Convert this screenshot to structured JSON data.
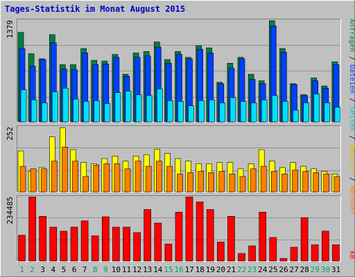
{
  "title": "Tages-Statistik im Monat August 2015",
  "colors": {
    "background": "#c0c0c0",
    "title": "#0000c0",
    "hits": "#008040",
    "files": "#0040ff",
    "pages": "#00e0ff",
    "visits": "#ffff00",
    "sites": "#ff8000",
    "kbytes": "#ff0000",
    "weekday_label": "#000000",
    "weekend_label": "#00a060"
  },
  "side_labels": {
    "top": [
      {
        "text": "Anfragen",
        "color": "#008040"
      },
      {
        "text": " / ",
        "color": "#000000"
      },
      {
        "text": "Dateien",
        "color": "#0040ff"
      },
      {
        "text": " / ",
        "color": "#000000"
      },
      {
        "text": "Seiten",
        "color": "#00c0e0"
      },
      {
        "text": " / ",
        "color": "#000000"
      },
      {
        "text": "Besuche",
        "color": "#e0c000"
      },
      {
        "text": " / ",
        "color": "#000000"
      },
      {
        "text": "Rechner",
        "color": "#ff8000"
      }
    ],
    "kb": {
      "text": "kB",
      "color": "#ff0000"
    }
  },
  "chart_data": [
    {
      "type": "bar",
      "name": "hits-files-pages",
      "ymax_label": "1379",
      "ylim": [
        0,
        1379
      ],
      "grid": true,
      "categories": [
        "1",
        "2",
        "3",
        "4",
        "5",
        "6",
        "7",
        "8",
        "9",
        "10",
        "11",
        "12",
        "13",
        "14",
        "15",
        "16",
        "17",
        "18",
        "19",
        "20",
        "21",
        "22",
        "23",
        "24",
        "25",
        "26",
        "27",
        "28",
        "29",
        "30",
        "31"
      ],
      "weekend_days": [
        "1",
        "2",
        "8",
        "9",
        "15",
        "16",
        "22",
        "23",
        "29",
        "30"
      ],
      "series": [
        {
          "key": "hits",
          "values": [
            1220,
            930,
            860,
            1190,
            780,
            780,
            1000,
            840,
            830,
            920,
            650,
            940,
            960,
            1090,
            850,
            960,
            880,
            1040,
            1010,
            540,
            800,
            880,
            650,
            560,
            1380,
            1000,
            520,
            370,
            600,
            490,
            820
          ]
        },
        {
          "key": "files",
          "values": [
            1000,
            760,
            850,
            1080,
            720,
            710,
            940,
            780,
            790,
            880,
            620,
            880,
            900,
            1020,
            800,
            920,
            860,
            990,
            940,
            520,
            730,
            860,
            580,
            520,
            1310,
            950,
            510,
            360,
            560,
            460,
            780
          ]
        },
        {
          "key": "pages",
          "values": [
            440,
            300,
            260,
            410,
            460,
            310,
            280,
            290,
            250,
            400,
            420,
            370,
            360,
            450,
            290,
            280,
            220,
            290,
            300,
            260,
            330,
            280,
            260,
            300,
            360,
            280,
            160,
            260,
            380,
            260,
            200
          ]
        }
      ]
    },
    {
      "type": "bar",
      "name": "visits-sites",
      "ymax_label": "252",
      "ylim": [
        0,
        252
      ],
      "grid": true,
      "categories": [
        "1",
        "2",
        "3",
        "4",
        "5",
        "6",
        "7",
        "8",
        "9",
        "10",
        "11",
        "12",
        "13",
        "14",
        "15",
        "16",
        "17",
        "18",
        "19",
        "20",
        "21",
        "22",
        "23",
        "24",
        "25",
        "26",
        "27",
        "28",
        "29",
        "30",
        "31"
      ],
      "series": [
        {
          "key": "visits",
          "values": [
            160,
            80,
            95,
            215,
            250,
            165,
            115,
            110,
            130,
            140,
            120,
            140,
            145,
            167,
            150,
            130,
            120,
            110,
            110,
            115,
            115,
            90,
            110,
            165,
            120,
            95,
            115,
            100,
            90,
            80,
            70
          ]
        },
        {
          "key": "sites",
          "values": [
            100,
            90,
            90,
            120,
            175,
            120,
            60,
            105,
            110,
            110,
            90,
            120,
            100,
            120,
            100,
            70,
            75,
            80,
            75,
            80,
            70,
            60,
            90,
            100,
            80,
            70,
            85,
            80,
            75,
            70,
            60
          ]
        }
      ]
    },
    {
      "type": "bar",
      "name": "kbytes",
      "ymax_label": "234485",
      "ylim": [
        0,
        234485
      ],
      "grid": true,
      "categories": [
        "1",
        "2",
        "3",
        "4",
        "5",
        "6",
        "7",
        "8",
        "9",
        "10",
        "11",
        "12",
        "13",
        "14",
        "15",
        "16",
        "17",
        "18",
        "19",
        "20",
        "21",
        "22",
        "23",
        "24",
        "25",
        "26",
        "27",
        "28",
        "29",
        "30",
        "31"
      ],
      "series": [
        {
          "key": "kbytes",
          "values": [
            95000,
            236000,
            165000,
            125000,
            110000,
            125000,
            148000,
            93000,
            163000,
            125000,
            125000,
            105000,
            190000,
            140000,
            63000,
            180000,
            236000,
            218000,
            190000,
            70000,
            165000,
            28000,
            56000,
            180000,
            87000,
            10000,
            51000,
            160000,
            60000,
            110000,
            60000
          ]
        }
      ]
    }
  ]
}
